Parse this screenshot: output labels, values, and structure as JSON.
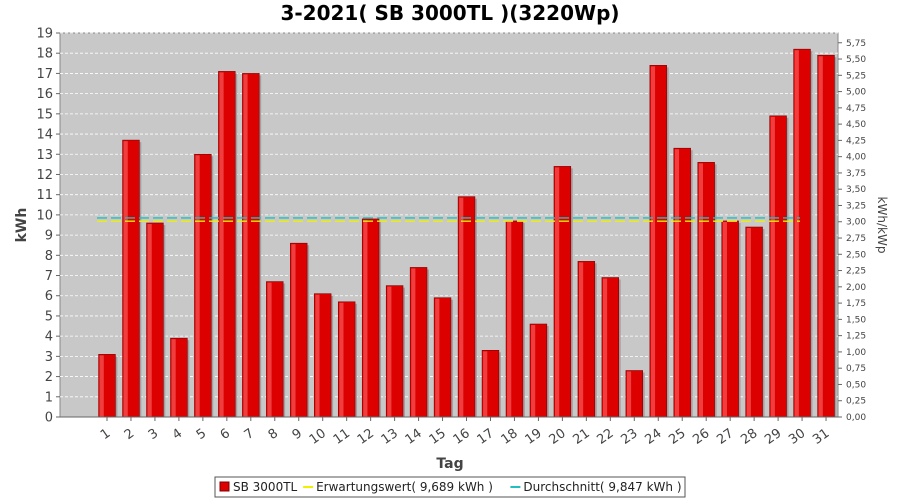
{
  "chart_data": {
    "type": "bar",
    "title": "3-2021( SB 3000TL )(3220Wp)",
    "xlabel": "Tag",
    "ylabel": "kWh",
    "y2label": "kWh/kWp",
    "ylim": [
      0,
      19
    ],
    "y2lim": [
      0,
      5.9
    ],
    "categories": [
      "1",
      "2",
      "3",
      "4",
      "5",
      "6",
      "7",
      "8",
      "9",
      "10",
      "11",
      "12",
      "13",
      "14",
      "15",
      "16",
      "17",
      "18",
      "19",
      "20",
      "21",
      "22",
      "23",
      "24",
      "25",
      "26",
      "27",
      "28",
      "29",
      "30",
      "31"
    ],
    "series": [
      {
        "name": "SB 3000TL",
        "color": "#dd0000",
        "values": [
          3.1,
          13.7,
          9.6,
          3.9,
          13.0,
          17.1,
          17.0,
          6.7,
          8.6,
          6.1,
          5.7,
          9.8,
          6.5,
          7.4,
          5.9,
          10.9,
          3.3,
          9.7,
          4.6,
          12.4,
          7.7,
          6.9,
          2.3,
          17.4,
          13.3,
          12.6,
          9.7,
          9.4,
          14.9,
          18.2,
          17.9
        ]
      }
    ],
    "lines": [
      {
        "name": "Erwartungswert( 9,689 kWh )",
        "value": 9.689,
        "color": "#f0f000"
      },
      {
        "name": "Durchschnitt( 9,847 kWh )",
        "value": 9.847,
        "color": "#20c0c0"
      }
    ],
    "yticks": [
      "0",
      "1",
      "2",
      "3",
      "4",
      "5",
      "6",
      "7",
      "8",
      "9",
      "10",
      "11",
      "12",
      "13",
      "14",
      "15",
      "16",
      "17",
      "18",
      "19"
    ],
    "y2ticks": [
      "0,00",
      "0,25",
      "0,50",
      "0,75",
      "1,00",
      "1,25",
      "1,50",
      "1,75",
      "2,00",
      "2,25",
      "2,50",
      "2,75",
      "3,00",
      "3,25",
      "3,50",
      "3,75",
      "4,00",
      "4,25",
      "4,50",
      "4,75",
      "5,00",
      "5,25",
      "5,50",
      "5,75"
    ],
    "grid": true,
    "legend_position": "bottom-center"
  }
}
